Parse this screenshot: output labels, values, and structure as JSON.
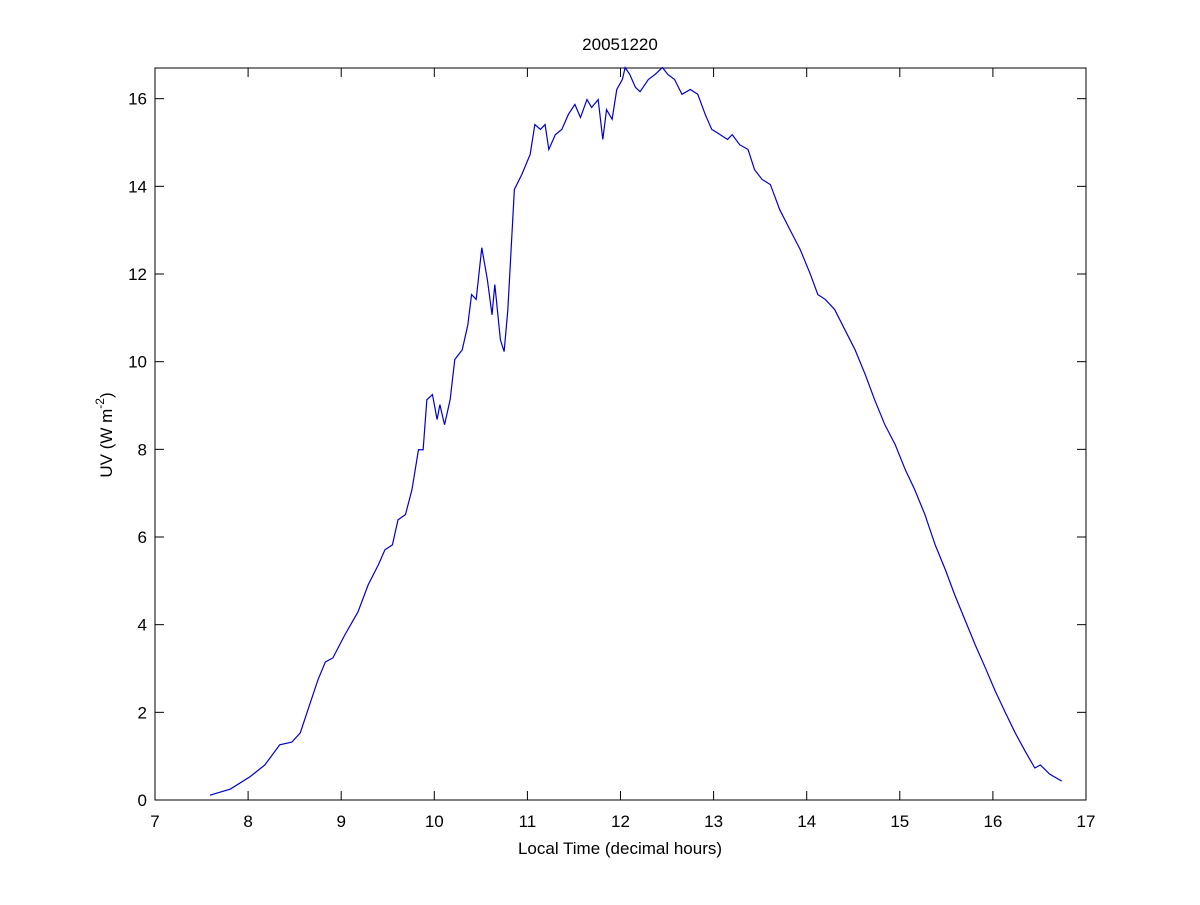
{
  "chart_data": {
    "type": "line",
    "title": "20051220",
    "xlabel": "Local Time (decimal hours)",
    "ylabel": {
      "text": "UV (W m",
      "superscript": "-2",
      "suffix": ")"
    },
    "color": "#0000cc",
    "xlim": [
      7,
      17
    ],
    "xticks": [
      7,
      8,
      9,
      10,
      11,
      12,
      13,
      14,
      15,
      16,
      17
    ],
    "ylim": [
      0,
      16.7
    ],
    "yticks": [
      0,
      2,
      4,
      6,
      8,
      10,
      12,
      14,
      16
    ],
    "grid": false,
    "x": [
      7.59,
      7.81,
      8.02,
      8.18,
      8.34,
      8.47,
      8.56,
      8.66,
      8.75,
      8.83,
      8.91,
      9.04,
      9.18,
      9.29,
      9.4,
      9.47,
      9.55,
      9.61,
      9.69,
      9.76,
      9.83,
      9.88,
      9.92,
      9.98,
      10.03,
      10.06,
      10.11,
      10.17,
      10.22,
      10.3,
      10.36,
      10.4,
      10.45,
      10.51,
      10.57,
      10.62,
      10.65,
      10.71,
      10.75,
      10.79,
      10.86,
      10.94,
      11.03,
      11.08,
      11.14,
      11.19,
      11.23,
      11.3,
      11.37,
      11.44,
      11.51,
      11.57,
      11.64,
      11.69,
      11.76,
      11.81,
      11.85,
      11.91,
      11.96,
      12.02,
      12.05,
      12.1,
      12.16,
      12.21,
      12.3,
      12.37,
      12.45,
      12.51,
      12.58,
      12.66,
      12.75,
      12.83,
      12.91,
      12.98,
      13.07,
      13.15,
      13.2,
      13.28,
      13.37,
      13.44,
      13.52,
      13.61,
      13.71,
      13.82,
      13.93,
      14.04,
      14.12,
      14.2,
      14.3,
      14.41,
      14.52,
      14.63,
      14.73,
      14.84,
      14.95,
      15.06,
      15.16,
      15.27,
      15.38,
      15.49,
      15.59,
      15.7,
      15.81,
      15.92,
      16.02,
      16.13,
      16.24,
      16.35,
      16.45,
      16.51,
      16.61,
      16.74
    ],
    "values": [
      0.11,
      0.25,
      0.53,
      0.8,
      1.26,
      1.32,
      1.53,
      2.17,
      2.74,
      3.15,
      3.24,
      3.77,
      4.29,
      4.91,
      5.37,
      5.71,
      5.82,
      6.39,
      6.51,
      7.08,
      7.99,
      7.99,
      9.13,
      9.25,
      8.68,
      9.02,
      8.56,
      9.13,
      10.05,
      10.27,
      10.84,
      11.53,
      11.42,
      12.6,
      11.87,
      11.07,
      11.76,
      10.5,
      10.23,
      11.19,
      13.93,
      14.27,
      14.73,
      15.41,
      15.3,
      15.41,
      14.84,
      15.18,
      15.3,
      15.64,
      15.87,
      15.57,
      15.98,
      15.8,
      15.98,
      15.07,
      15.75,
      15.53,
      16.21,
      16.44,
      16.71,
      16.55,
      16.26,
      16.16,
      16.44,
      16.55,
      16.71,
      16.55,
      16.44,
      16.1,
      16.21,
      16.1,
      15.64,
      15.3,
      15.18,
      15.07,
      15.18,
      14.95,
      14.84,
      14.38,
      14.16,
      14.04,
      13.47,
      13.01,
      12.56,
      11.99,
      11.53,
      11.42,
      11.19,
      10.73,
      10.27,
      9.7,
      9.13,
      8.56,
      8.11,
      7.53,
      7.08,
      6.51,
      5.82,
      5.25,
      4.68,
      4.11,
      3.54,
      3.01,
      2.51,
      2.01,
      1.53,
      1.1,
      0.73,
      0.8,
      0.59,
      0.43
    ]
  }
}
